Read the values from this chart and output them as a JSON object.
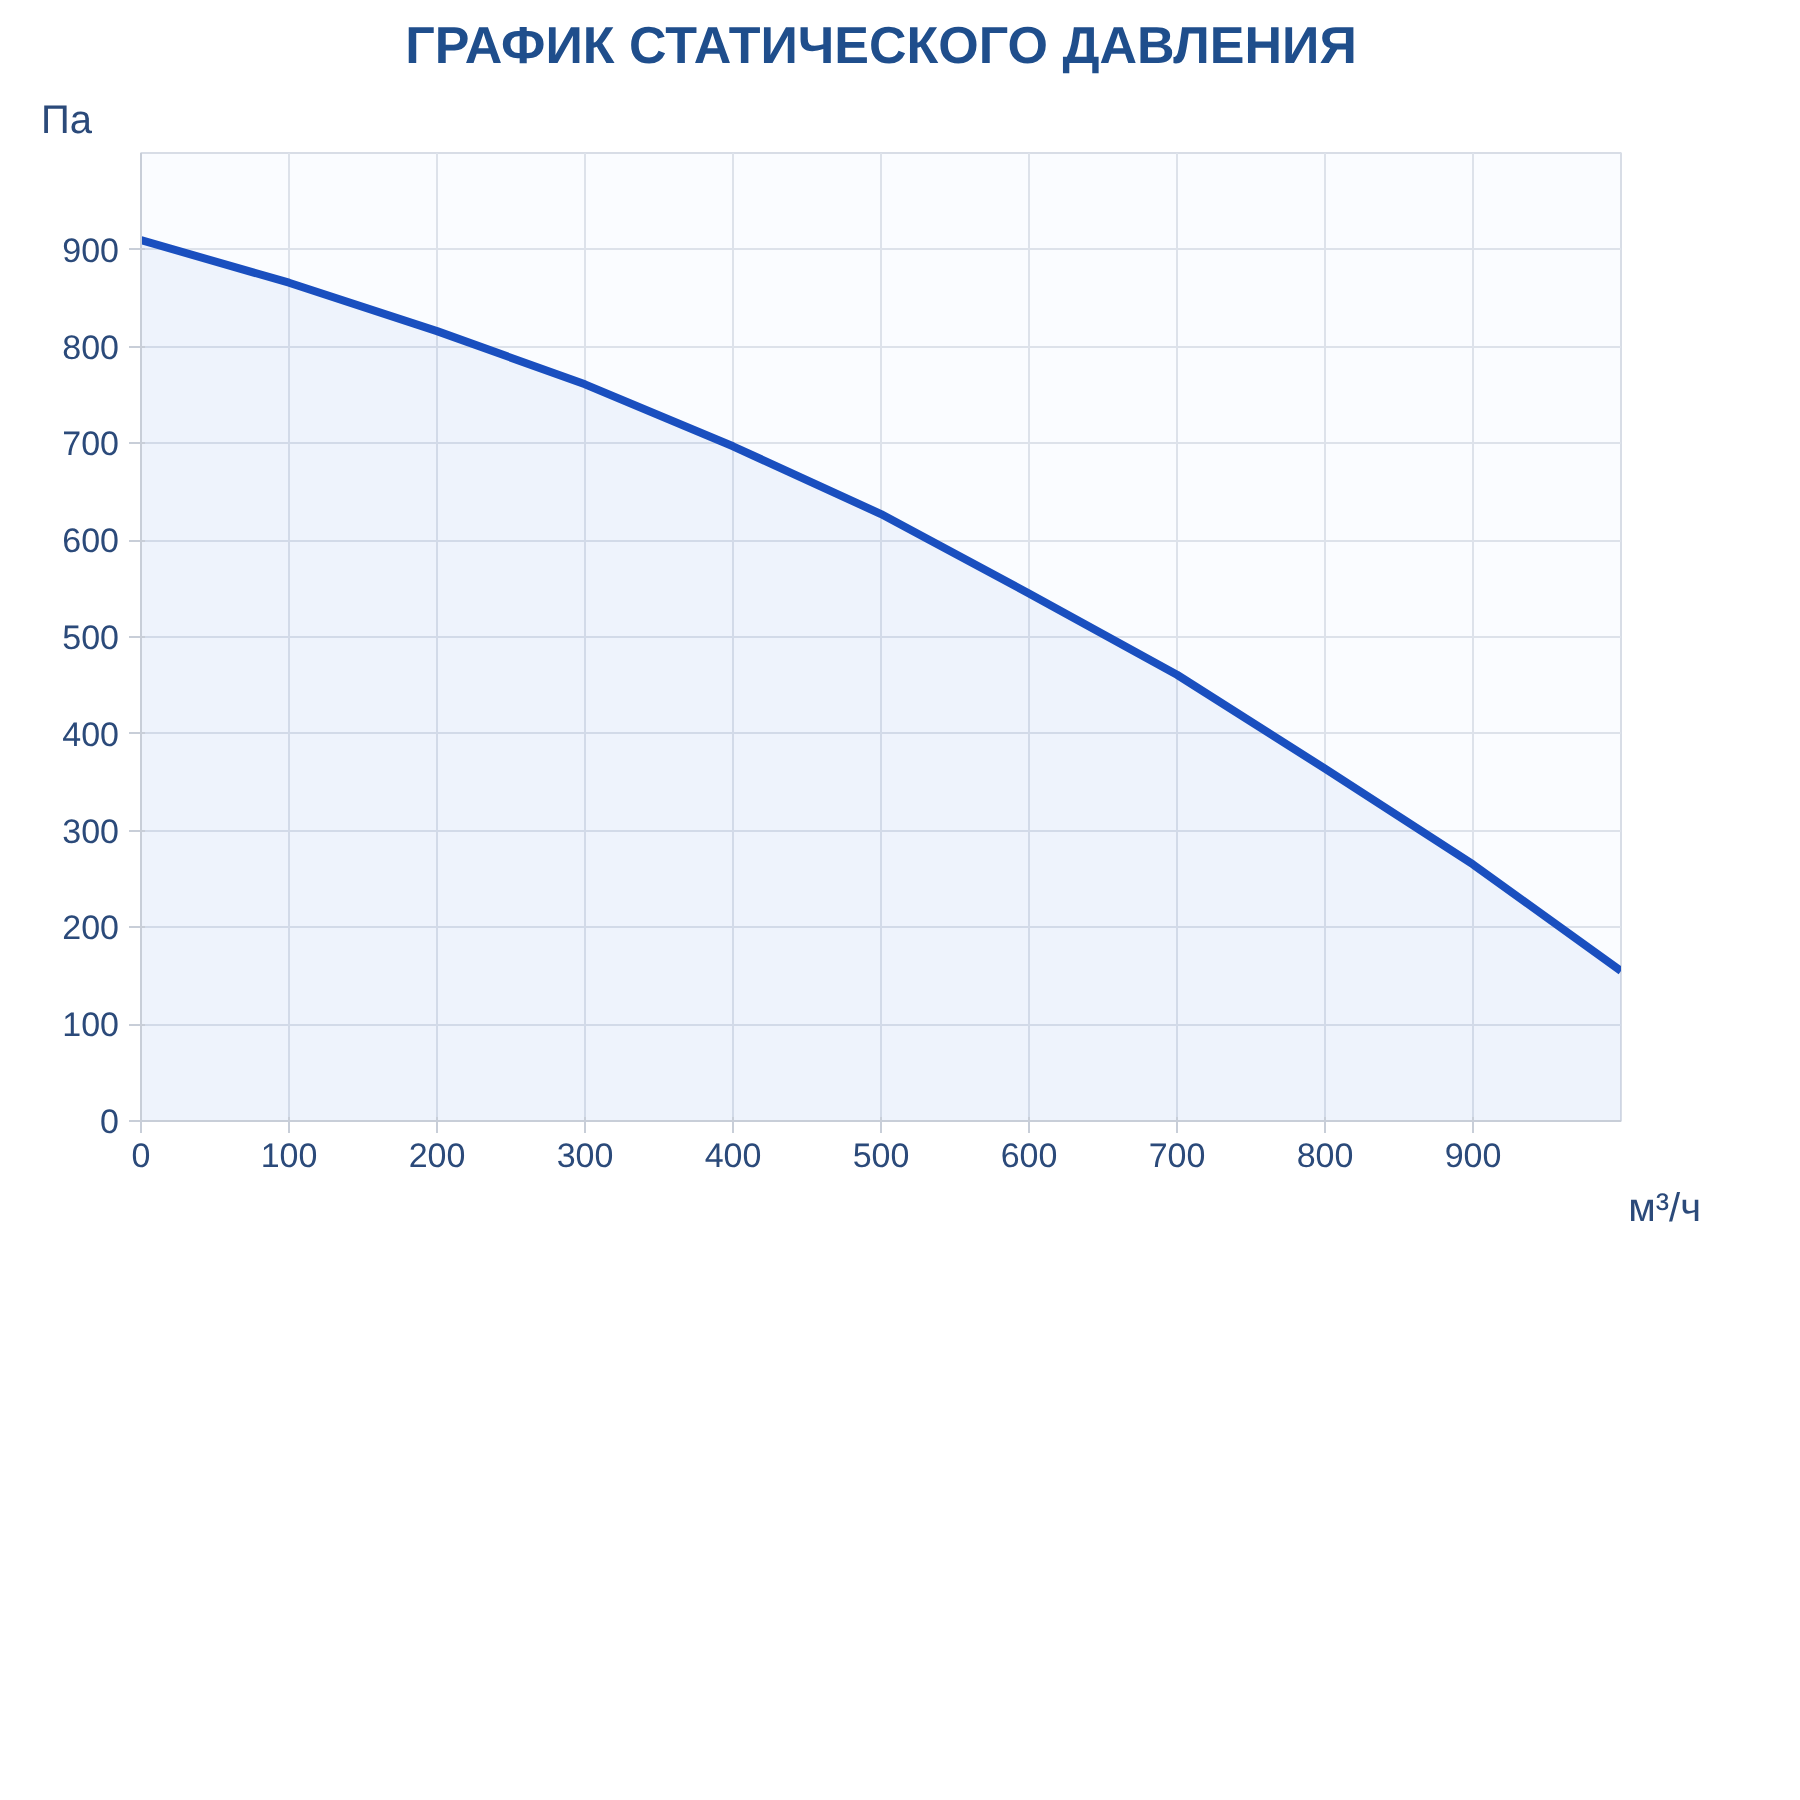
{
  "chart_data": {
    "type": "area",
    "title": "ГРАФИК СТАТИЧЕСКОГО ДАВЛЕНИЯ",
    "xlabel": "м³/ч",
    "ylabel": "Па",
    "x": [
      0,
      100,
      200,
      300,
      400,
      500,
      600,
      700,
      800,
      900,
      1000
    ],
    "series": [
      {
        "color": "#1a4fbf",
        "values": [
          910,
          866,
          816,
          761,
          697,
          627,
          545,
          461,
          364,
          265,
          155
        ]
      }
    ],
    "xlim": [
      0,
      1000
    ],
    "ylim": [
      0,
      1000
    ],
    "xticks": [
      0,
      100,
      200,
      300,
      400,
      500,
      600,
      700,
      800,
      900
    ],
    "yticks": [
      0,
      100,
      200,
      300,
      400,
      500,
      600,
      700,
      800,
      900
    ],
    "grid": true
  }
}
